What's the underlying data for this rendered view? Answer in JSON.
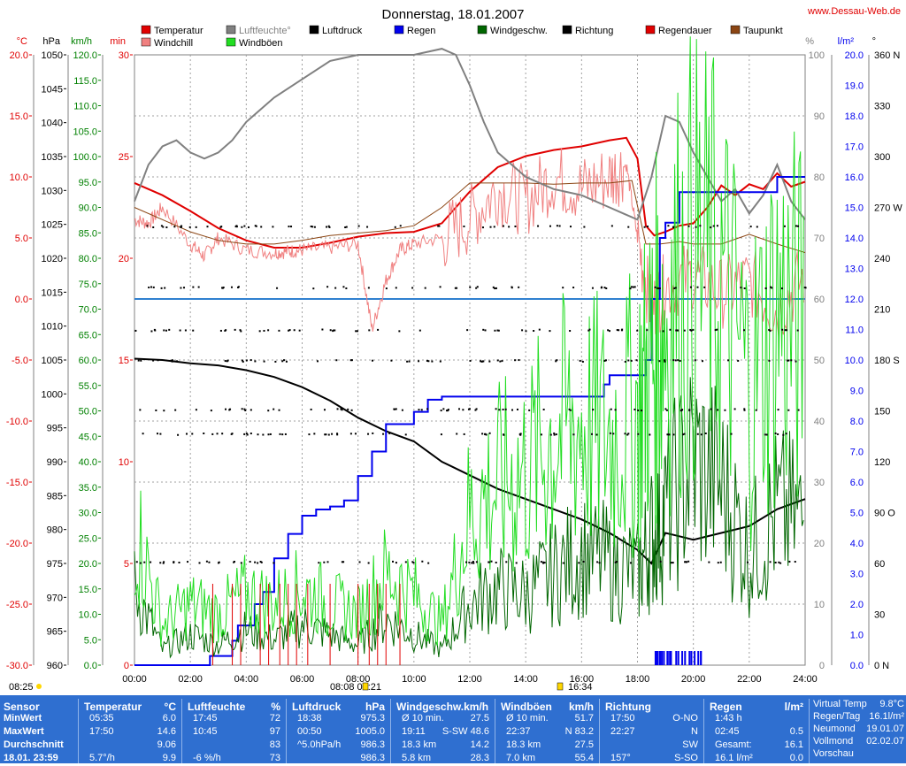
{
  "title": "Donnerstag, 18.01.2007",
  "site": "www.Dessau-Web.de",
  "legend": [
    {
      "label": "Temperatur",
      "color": "#e00000",
      "row": 0,
      "col": 0
    },
    {
      "label": "Windchill",
      "color": "#f08080",
      "row": 1,
      "col": 0
    },
    {
      "label": "Luftfeuchte°",
      "color": "#808080",
      "row": 0,
      "col": 1,
      "text_color": "#808080"
    },
    {
      "label": "Windböen",
      "color": "#22dd22",
      "row": 1,
      "col": 1
    },
    {
      "label": "Luftdruck",
      "color": "#000000",
      "row": 0,
      "col": 2
    },
    {
      "label": "Regen",
      "color": "#0000ee",
      "row": 0,
      "col": 3
    },
    {
      "label": "Windgeschw.",
      "color": "#006600",
      "row": 0,
      "col": 4
    },
    {
      "label": "Richtung",
      "color": "#000000",
      "row": 0,
      "col": 5
    },
    {
      "label": "Regendauer",
      "color": "#e00000",
      "row": 0,
      "col": 6
    },
    {
      "label": "Taupunkt",
      "color": "#8b4513",
      "row": 0,
      "col": 7
    }
  ],
  "axis_units": {
    "temp": "°C",
    "hpa": "hPa",
    "kmh": "km/h",
    "min": "min",
    "pct": "%",
    "lm2": "l/m²",
    "deg": "°"
  },
  "axes": {
    "temp": {
      "min": -30,
      "max": 20,
      "step": 5,
      "ticks": [
        "20.0",
        "15.0",
        "10.0",
        "5.0",
        "0.0",
        "-5.0",
        "-10.0",
        "-15.0",
        "-20.0",
        "-25.0",
        "-30.0"
      ],
      "color": "#e00000"
    },
    "hpa": {
      "min": 960,
      "max": 1050,
      "step": 5,
      "ticks": [
        "1050",
        "1045",
        "1040",
        "1035",
        "1030",
        "1025",
        "1020",
        "1015",
        "1010",
        "1005",
        "1000",
        "995",
        "990",
        "985",
        "980",
        "975",
        "970",
        "965",
        "960"
      ],
      "color": "#000000"
    },
    "kmh": {
      "min": 0,
      "max": 120,
      "step": 5,
      "ticks": [
        "120.0",
        "115.0",
        "110.0",
        "105.0",
        "100.0",
        "95.0",
        "90.0",
        "85.0",
        "80.0",
        "75.0",
        "70.0",
        "65.0",
        "60.0",
        "55.0",
        "50.0",
        "45.0",
        "40.0",
        "35.0",
        "30.0",
        "25.0",
        "20.0",
        "15.0",
        "10.0",
        "5.0",
        "0.0"
      ],
      "color": "#008000"
    },
    "min": {
      "min": 0,
      "max": 30,
      "step": 5,
      "ticks": [
        "30",
        "25",
        "20",
        "15",
        "10",
        "5",
        "0"
      ],
      "color": "#e00000"
    },
    "pct": {
      "min": 0,
      "max": 100,
      "step": 10,
      "ticks": [
        "100",
        "90",
        "80",
        "70",
        "60",
        "50",
        "40",
        "30",
        "20",
        "10",
        "0"
      ],
      "color": "#808080"
    },
    "lm2": {
      "min": 0,
      "max": 20,
      "step": 1,
      "ticks": [
        "20.0",
        "19.0",
        "18.0",
        "17.0",
        "16.0",
        "15.0",
        "14.0",
        "13.0",
        "12.0",
        "11.0",
        "10.0",
        "9.0",
        "8.0",
        "7.0",
        "6.0",
        "5.0",
        "4.0",
        "3.0",
        "2.0",
        "1.0",
        "0.0"
      ],
      "color": "#0000ee"
    },
    "deg": {
      "ticks": [
        "360 N",
        "330",
        "300",
        "270 W",
        "240",
        "210",
        "180 S",
        "150",
        "120",
        "90 O",
        "60",
        "30",
        "0 N"
      ],
      "color": "#000000"
    },
    "x": {
      "ticks": [
        "00:00",
        "02:00",
        "04:00",
        "06:00",
        "08:00",
        "10:00",
        "12:00",
        "14:00",
        "16:00",
        "18:00",
        "20:00",
        "22:00",
        "24:00"
      ]
    }
  },
  "sun": {
    "rise": "08:25",
    "mid_a": "08:08",
    "mid_b": "08:21",
    "set": "16:34"
  },
  "chart_data": {
    "type": "line",
    "x_unit": "hour",
    "series": [
      {
        "name": "Temperatur",
        "axis": "temp",
        "color": "#e00000",
        "x": [
          0,
          1,
          2,
          3,
          4,
          5,
          6,
          7,
          8,
          9,
          10,
          11,
          12,
          13,
          14,
          15,
          16,
          17,
          17.6,
          18,
          18.3,
          18.6,
          19,
          19.5,
          20,
          20.5,
          21,
          21.5,
          22,
          22.5,
          23,
          23.5,
          24
        ],
        "y": [
          9.5,
          8.5,
          7.2,
          5.8,
          4.8,
          4.2,
          4.2,
          4.6,
          5.1,
          5.4,
          5.5,
          6.2,
          8.8,
          10.8,
          11.7,
          12.2,
          12.5,
          13,
          13.2,
          11.5,
          6,
          5.2,
          5.5,
          6,
          6.2,
          7.5,
          9.3,
          8.5,
          9.4,
          9,
          10.3,
          9.2,
          9.6
        ]
      },
      {
        "name": "Windchill",
        "axis": "temp",
        "color": "#f08080",
        "x": [
          0,
          0.5,
          1,
          2,
          2.5,
          3,
          4,
          5,
          5.5,
          6,
          7,
          8,
          8.5,
          9,
          9.5,
          10,
          11,
          12,
          13,
          14,
          15,
          16,
          17,
          17.6,
          18,
          18.5,
          19,
          20,
          21,
          22,
          23,
          24
        ],
        "y": [
          6.5,
          6.2,
          7.5,
          4.5,
          3.5,
          5,
          4,
          3.8,
          3.9,
          4,
          4.2,
          4.5,
          -2.5,
          1.5,
          4,
          4.5,
          5,
          6.5,
          9,
          8,
          10,
          9,
          10,
          11,
          5,
          -1,
          1,
          2,
          0.5,
          1.5,
          -1,
          2
        ]
      },
      {
        "name": "Taupunkt",
        "axis": "temp",
        "color": "#8b4513",
        "x": [
          0,
          1,
          2,
          3,
          4,
          5,
          6,
          7,
          8,
          9,
          10,
          11,
          12,
          13,
          14,
          15,
          16,
          17,
          17.8,
          18.3,
          18.8,
          19.5,
          20,
          21,
          22,
          23,
          24
        ],
        "y": [
          7.5,
          6.5,
          5.5,
          4.8,
          4.5,
          4.5,
          4.8,
          5.2,
          5.4,
          5.6,
          6,
          7.5,
          9.5,
          9.5,
          9.5,
          9.4,
          9.5,
          9.5,
          9.7,
          4.5,
          4.5,
          4.7,
          4.5,
          4.5,
          5.3,
          4.5,
          3.8
        ]
      },
      {
        "name": "Luftfeuchte°",
        "axis": "pct",
        "color": "#808080",
        "x": [
          0,
          0.5,
          1,
          1.5,
          2,
          2.5,
          3,
          3.5,
          4,
          5,
          6,
          7,
          8,
          9,
          10,
          11,
          11.5,
          12,
          12.5,
          13,
          14,
          15,
          16,
          17,
          17.5,
          18,
          18.5,
          19,
          19.5,
          20,
          20.5,
          21,
          21.5,
          22,
          22.5,
          23,
          23.5,
          24
        ],
        "y": [
          76,
          82,
          85,
          86,
          84,
          83,
          84,
          86,
          89,
          93,
          96,
          99,
          100,
          100,
          100,
          101,
          100,
          95,
          89,
          84,
          80,
          78,
          77,
          75,
          74,
          73,
          80,
          90,
          89,
          84,
          80,
          76,
          78,
          74,
          77,
          82,
          76,
          73
        ]
      },
      {
        "name": "Luftdruck",
        "axis": "hpa",
        "color": "#000000",
        "x": [
          0,
          1,
          2,
          3,
          4,
          5,
          6,
          7,
          8,
          9,
          10,
          11,
          12,
          13,
          14,
          15,
          16,
          17,
          18,
          18.5,
          19,
          19.5,
          20,
          21,
          22,
          23,
          24
        ],
        "y": [
          1005.2,
          1005,
          1004.5,
          1004.2,
          1003.5,
          1002.5,
          1001,
          999,
          996.5,
          994.5,
          993,
          990,
          988,
          986,
          984.5,
          983,
          981.5,
          979.5,
          977,
          975,
          979.5,
          979,
          978.5,
          979.5,
          980.5,
          983,
          984.5
        ]
      },
      {
        "name": "Regen",
        "axis": "lm2",
        "color": "#0000ee",
        "x": [
          0,
          2.6,
          2.7,
          3.5,
          3.7,
          4.3,
          4.6,
          5,
          5.5,
          6,
          6.5,
          7,
          7.5,
          8,
          8.5,
          9,
          9.5,
          10,
          10.5,
          11,
          12,
          13,
          14,
          15,
          16,
          16.8,
          17,
          18,
          18.3,
          18.5,
          18.8,
          19,
          19.5,
          20,
          21,
          22,
          22.5,
          23,
          24
        ],
        "y": [
          0,
          0,
          0.3,
          0.8,
          1.3,
          2,
          2.4,
          3.5,
          4.3,
          4.9,
          5.1,
          5.2,
          5.4,
          6.2,
          7,
          7.9,
          7.9,
          8.3,
          8.7,
          8.8,
          8.8,
          8.8,
          8.8,
          8.8,
          8.8,
          9.2,
          9.5,
          9.5,
          10,
          12,
          14,
          14.5,
          15.5,
          15.5,
          15.5,
          15.5,
          15.5,
          16,
          16
        ]
      },
      {
        "name": "Windgeschw.",
        "axis": "kmh",
        "color": "#006600",
        "x": [
          0,
          1,
          2,
          3,
          4,
          5,
          6,
          7,
          8,
          9,
          10,
          11,
          12,
          13,
          14,
          15,
          16,
          17,
          18,
          18.5,
          19,
          20,
          21,
          22,
          23,
          24
        ],
        "y": [
          15,
          3,
          6,
          4,
          7,
          5,
          8,
          6,
          4,
          9,
          6,
          3,
          12,
          15,
          14,
          18,
          22,
          20,
          18,
          25,
          30,
          40,
          35,
          22,
          30,
          28
        ]
      },
      {
        "name": "Windböen",
        "axis": "kmh",
        "color": "#22dd22",
        "x": [
          0,
          1,
          2,
          3,
          4,
          5,
          6,
          7,
          8,
          9,
          10,
          11,
          12,
          13,
          14,
          15,
          16,
          17,
          18,
          18.5,
          19,
          20,
          21,
          22,
          23,
          24
        ],
        "y": [
          28,
          8,
          12,
          10,
          14,
          12,
          15,
          12,
          10,
          18,
          14,
          8,
          30,
          35,
          38,
          45,
          48,
          45,
          50,
          60,
          70,
          80,
          75,
          55,
          70,
          65
        ]
      },
      {
        "name": "Regendauer",
        "axis": "min",
        "color": "#e00000",
        "type": "spikes",
        "x": [
          2.8,
          3.5,
          3.8,
          4.5,
          4.8,
          5.2,
          5.5,
          5.8,
          6.2,
          7,
          8,
          8.4,
          8.7,
          9,
          9.5
        ],
        "y": [
          4,
          4,
          4,
          4,
          4,
          4,
          4,
          4,
          4,
          4,
          4,
          4,
          4,
          4,
          4
        ]
      }
    ],
    "reference_line": {
      "axis": "temp",
      "value": 0
    }
  },
  "panel": {
    "headers": [
      "Sensor",
      "MinWert",
      "MaxWert",
      "Durchschnitt",
      "18.01. 23:59"
    ],
    "temp": {
      "title": "Temperatur",
      "unit": "°C",
      "rows": [
        [
          "05:35",
          "6.0"
        ],
        [
          "17:50",
          "14.6"
        ],
        [
          "",
          "9.06"
        ],
        [
          "5.7°/h",
          "9.9"
        ]
      ]
    },
    "hum": {
      "title": "Luftfeuchte",
      "unit": "%",
      "rows": [
        [
          "17:45",
          "72"
        ],
        [
          "10:45",
          "97"
        ],
        [
          "",
          "83"
        ],
        [
          "-6 %/h",
          "73"
        ]
      ]
    },
    "press": {
      "title": "Luftdruck",
      "unit": "hPa",
      "rows": [
        [
          "18:38",
          "975.3"
        ],
        [
          "00:50",
          "1005.0"
        ],
        [
          "^5.0hPa/h",
          "986.3"
        ],
        [
          "",
          "986.3"
        ]
      ]
    },
    "wind": {
      "title": "Windgeschw.km/h",
      "rows": [
        [
          "Ø 10 min.",
          "27.5"
        ],
        [
          "19:11",
          "S-SW 48.6"
        ],
        [
          "18.3 km",
          "14.2"
        ],
        [
          "5.8 km",
          "28.3"
        ]
      ]
    },
    "gust": {
      "title": "Windböen",
      "unit": "km/h",
      "rows": [
        [
          "Ø 10 min.",
          "51.7"
        ],
        [
          "22:37",
          "N 83.2"
        ],
        [
          "18.3 km",
          "27.5"
        ],
        [
          "7.0 km",
          "55.4"
        ]
      ]
    },
    "dir": {
      "title": "Richtung",
      "rows": [
        [
          "17:50",
          "O-NO"
        ],
        [
          "22:27",
          "N"
        ],
        [
          "",
          "SW"
        ],
        [
          "157°",
          "S-SO"
        ]
      ]
    },
    "rain": {
      "title": "Regen",
      "unit": "l/m²",
      "rows": [
        [
          "1:43 h",
          ""
        ],
        [
          "02:45",
          "0.5"
        ],
        [
          "Gesamt:",
          "16.1"
        ],
        [
          "16.1 l/m²",
          "0.0"
        ]
      ]
    },
    "misc": {
      "rows": [
        [
          "Virtual Temp",
          "9.8°C"
        ],
        [
          "Regen/Tag",
          "16.1l/m²"
        ],
        [
          "Neumond",
          "19.01.07"
        ],
        [
          "Vollmond",
          "02.02.07"
        ],
        [
          "Vorschau",
          ""
        ]
      ]
    }
  }
}
